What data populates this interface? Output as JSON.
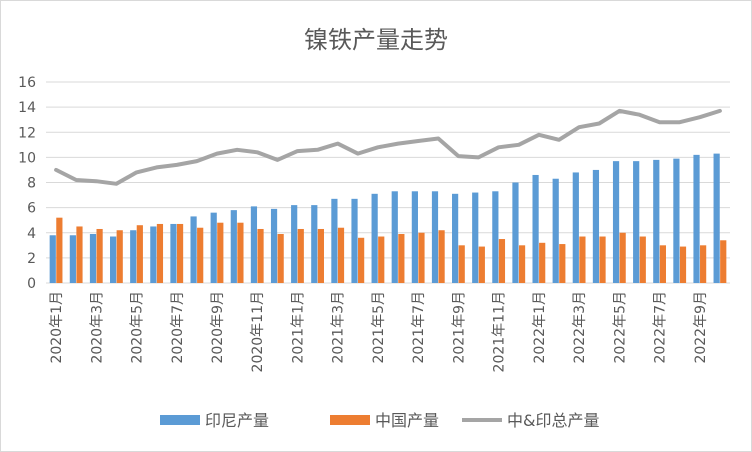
{
  "chart_data": {
    "type": "bar+line",
    "title": "镍铁产量走势",
    "ylim": [
      0,
      16
    ],
    "yticks": [
      0,
      2,
      4,
      6,
      8,
      10,
      12,
      14,
      16
    ],
    "grid": true,
    "legend_position": "bottom",
    "categories": [
      "2020年1月",
      "2020年2月",
      "2020年3月",
      "2020年4月",
      "2020年5月",
      "2020年6月",
      "2020年7月",
      "2020年8月",
      "2020年9月",
      "2020年10月",
      "2020年11月",
      "2020年12月",
      "2021年1月",
      "2021年2月",
      "2021年3月",
      "2021年4月",
      "2021年5月",
      "2021年6月",
      "2021年7月",
      "2021年8月",
      "2021年9月",
      "2021年10月",
      "2021年11月",
      "2021年12月",
      "2022年1月",
      "2022年2月",
      "2022年3月",
      "2022年4月",
      "2022年5月",
      "2022年6月",
      "2022年7月",
      "2022年8月",
      "2022年9月",
      "2022年10月"
    ],
    "tick_labels": [
      "2020年1月",
      "",
      "2020年3月",
      "",
      "2020年5月",
      "",
      "2020年7月",
      "",
      "2020年9月",
      "",
      "2020年11月",
      "",
      "2021年1月",
      "",
      "2021年3月",
      "",
      "2021年5月",
      "",
      "2021年7月",
      "",
      "2021年9月",
      "",
      "2021年11月",
      "",
      "2022年1月",
      "",
      "2022年3月",
      "",
      "2022年5月",
      "",
      "2022年7月",
      "",
      "2022年9月",
      ""
    ],
    "series": [
      {
        "name": "印尼产量",
        "type": "bar",
        "color": "#5b9bd5",
        "values": [
          3.8,
          3.8,
          3.9,
          3.7,
          4.2,
          4.5,
          4.7,
          5.3,
          5.6,
          5.8,
          6.1,
          5.9,
          6.2,
          6.2,
          6.7,
          6.7,
          7.1,
          7.3,
          7.3,
          7.3,
          7.1,
          7.2,
          7.3,
          8.0,
          8.6,
          8.3,
          8.8,
          9.0,
          9.7,
          9.7,
          9.8,
          9.9,
          10.2,
          10.3
        ]
      },
      {
        "name": "中国产量",
        "type": "bar",
        "color": "#ed7d31",
        "values": [
          5.2,
          4.5,
          4.3,
          4.2,
          4.6,
          4.7,
          4.7,
          4.4,
          4.8,
          4.8,
          4.3,
          3.9,
          4.3,
          4.3,
          4.4,
          3.6,
          3.7,
          3.9,
          4.0,
          4.2,
          3.0,
          2.9,
          3.5,
          3.0,
          3.2,
          3.1,
          3.7,
          3.7,
          4.0,
          3.7,
          3.0,
          2.9,
          3.0,
          3.4
        ]
      },
      {
        "name": "中&印总产量",
        "type": "line",
        "color": "#a5a5a5",
        "values": [
          9.0,
          8.2,
          8.1,
          7.9,
          8.8,
          9.2,
          9.4,
          9.7,
          10.3,
          10.6,
          10.4,
          9.8,
          10.5,
          10.6,
          11.1,
          10.3,
          10.8,
          11.1,
          11.3,
          11.5,
          10.1,
          10.0,
          10.8,
          11.0,
          11.8,
          11.4,
          12.4,
          12.7,
          13.7,
          13.4,
          12.8,
          12.8,
          13.2,
          13.7
        ]
      }
    ]
  }
}
